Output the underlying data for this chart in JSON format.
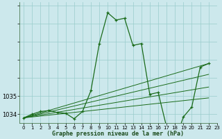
{
  "title": "Graphe pression niveau de la mer (hPa)",
  "bg_color": "#cce8ec",
  "grid_color": "#99cccc",
  "line_color": "#1a6b1a",
  "ylim": [
    1033.5,
    1040.2
  ],
  "xlim": [
    -0.5,
    23
  ],
  "yticks": [
    1034,
    1035,
    1036,
    1037,
    1038,
    1039,
    1040
  ],
  "ytick_labels": [
    "1034",
    "1035",
    "",
    "",
    "",
    "",
    ""
  ],
  "xticks": [
    0,
    1,
    2,
    3,
    4,
    5,
    6,
    7,
    8,
    9,
    10,
    11,
    12,
    13,
    14,
    15,
    16,
    17,
    18,
    19,
    20,
    21,
    22,
    23
  ],
  "main_data": [
    1033.8,
    1034.0,
    1034.15,
    1034.2,
    1034.1,
    1034.05,
    1033.75,
    1034.15,
    1035.3,
    1037.9,
    1039.6,
    1039.2,
    1039.3,
    1037.8,
    1037.9,
    1035.1,
    1035.2,
    1033.3,
    1032.5,
    1033.85,
    1034.4,
    1036.6,
    1036.8
  ],
  "trend_lines": [
    {
      "x0": 0,
      "y0": 1033.8,
      "x1": 22,
      "y1": 1036.8
    },
    {
      "x0": 0,
      "y0": 1033.8,
      "x1": 22,
      "y1": 1036.2
    },
    {
      "x0": 0,
      "y0": 1033.8,
      "x1": 22,
      "y1": 1035.5
    },
    {
      "x0": 0,
      "y0": 1033.8,
      "x1": 22,
      "y1": 1034.9
    }
  ]
}
